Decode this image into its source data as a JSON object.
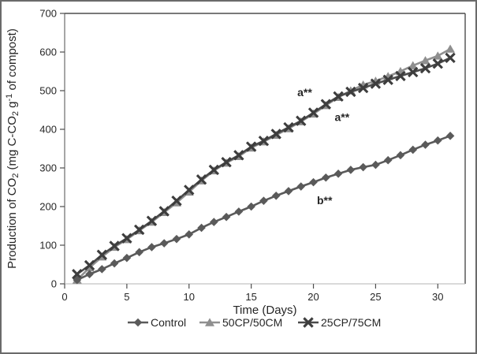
{
  "chart_data": {
    "type": "line",
    "title": "",
    "xlabel": "Time (Days)",
    "ylabel_plain": "Production of CO2 (mg C-CO2 g-1 of compost)",
    "ylabel_segments": [
      {
        "t": "Production of CO",
        "s": "n"
      },
      {
        "t": "2",
        "s": "sub"
      },
      {
        "t": " (mg C-CO",
        "s": "n"
      },
      {
        "t": "2",
        "s": "sub"
      },
      {
        "t": " g",
        "s": "n"
      },
      {
        "t": "-1",
        "s": "sup"
      },
      {
        "t": " of compost)",
        "s": "n"
      }
    ],
    "xlim": [
      0,
      32.2
    ],
    "ylim": [
      0,
      700
    ],
    "x_ticks": [
      0,
      5,
      10,
      15,
      20,
      25,
      30
    ],
    "y_ticks": [
      0,
      100,
      200,
      300,
      400,
      500,
      600,
      700
    ],
    "grid": false,
    "legend_position": "bottom",
    "x": [
      1,
      2,
      3,
      4,
      5,
      6,
      7,
      8,
      9,
      10,
      11,
      12,
      13,
      14,
      15,
      16,
      17,
      18,
      19,
      20,
      21,
      22,
      23,
      24,
      25,
      26,
      27,
      28,
      29,
      30,
      31
    ],
    "series": [
      {
        "name": "Control",
        "marker": "diamond",
        "color": "#5a5a5a",
        "line_color": "#5a5a5a",
        "annotation": "b**",
        "values": [
          10,
          25,
          38,
          53,
          67,
          82,
          95,
          105,
          116,
          128,
          145,
          160,
          173,
          187,
          200,
          215,
          228,
          240,
          252,
          263,
          275,
          285,
          295,
          302,
          308,
          320,
          333,
          347,
          360,
          371,
          383
        ]
      },
      {
        "name": "50CP/50CM",
        "marker": "triangle",
        "color": "#8f8f8f",
        "line_color": "#909090",
        "annotation": "a**",
        "values": [
          10,
          42,
          70,
          95,
          115,
          138,
          160,
          185,
          210,
          238,
          267,
          293,
          313,
          330,
          352,
          368,
          385,
          402,
          420,
          440,
          462,
          483,
          500,
          515,
          525,
          537,
          550,
          565,
          578,
          590,
          608
        ]
      },
      {
        "name": "25CP/75CM",
        "marker": "x",
        "color": "#3d3d3d",
        "line_color": "#4a4a4a",
        "annotation": "a**",
        "values": [
          25,
          48,
          75,
          98,
          118,
          140,
          163,
          188,
          215,
          243,
          270,
          295,
          315,
          333,
          355,
          370,
          388,
          405,
          422,
          443,
          465,
          485,
          497,
          507,
          518,
          528,
          538,
          548,
          558,
          570,
          585
        ]
      }
    ],
    "annotations": [
      {
        "text": "a**",
        "day": 19.3,
        "value": 496
      },
      {
        "text": "a**",
        "day": 22.3,
        "value": 432
      },
      {
        "text": "b**",
        "day": 20.9,
        "value": 216
      }
    ]
  },
  "style": {
    "text_color": "#262626",
    "axis_dark": "#4d4d4d",
    "axis_light": "#b5b5b5",
    "background": "#ffffff",
    "border_color": "#6a6a6a"
  }
}
